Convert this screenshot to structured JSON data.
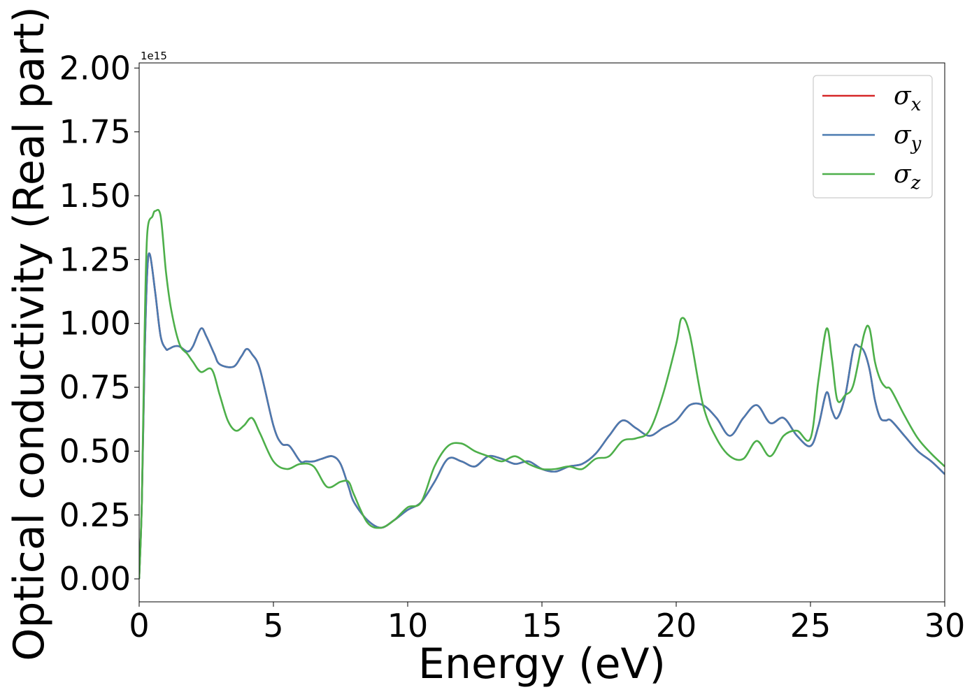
{
  "chart_data": {
    "type": "line",
    "xlabel": "Energy (eV)",
    "ylabel": "Optical conductivity (Real part)",
    "y_offset_label": "1e15",
    "xlim": [
      0,
      30
    ],
    "ylim": [
      -0.09,
      2.02
    ],
    "x_ticks": [
      0,
      5,
      10,
      15,
      20,
      25,
      30
    ],
    "y_ticks": [
      0.0,
      0.25,
      0.5,
      0.75,
      1.0,
      1.25,
      1.5,
      1.75,
      2.0
    ],
    "x_tick_labels": [
      "0",
      "5",
      "10",
      "15",
      "20",
      "25",
      "30"
    ],
    "y_tick_labels": [
      "0.00",
      "0.25",
      "0.50",
      "0.75",
      "1.00",
      "1.25",
      "1.50",
      "1.75",
      "2.00"
    ],
    "grid": false,
    "legend_position": "top-right",
    "series": [
      {
        "name": "σx",
        "label_base": "σ",
        "label_sub": "x",
        "color": "#d62728",
        "x": [
          0,
          0.1,
          0.2,
          0.3,
          0.4,
          0.6,
          0.8,
          1.0,
          1.1,
          1.3,
          1.5,
          1.8,
          2.0,
          2.3,
          2.5,
          2.8,
          3.0,
          3.5,
          3.8,
          4.0,
          4.2,
          4.5,
          5.0,
          5.3,
          5.6,
          6.0,
          6.2,
          6.5,
          6.8,
          7.2,
          7.5,
          7.8,
          8.0,
          8.5,
          9.0,
          9.5,
          10.0,
          10.5,
          11.0,
          11.5,
          12.0,
          12.5,
          13.0,
          13.5,
          14.0,
          14.5,
          15.0,
          15.5,
          16.0,
          16.5,
          17.0,
          17.5,
          18.0,
          18.5,
          19.0,
          19.5,
          20.0,
          20.5,
          21.0,
          21.5,
          22.0,
          22.5,
          23.0,
          23.5,
          24.0,
          24.5,
          25.0,
          25.3,
          25.6,
          25.8,
          26.0,
          26.3,
          26.6,
          26.8,
          27.0,
          27.2,
          27.4,
          27.6,
          27.8,
          28.0,
          28.5,
          29.0,
          29.5,
          30.0
        ],
        "y": [
          0.0,
          0.3,
          0.85,
          1.2,
          1.27,
          1.12,
          0.95,
          0.9,
          0.9,
          0.91,
          0.91,
          0.89,
          0.91,
          0.98,
          0.95,
          0.88,
          0.84,
          0.83,
          0.87,
          0.9,
          0.88,
          0.82,
          0.6,
          0.53,
          0.52,
          0.46,
          0.46,
          0.46,
          0.47,
          0.48,
          0.45,
          0.36,
          0.3,
          0.23,
          0.2,
          0.23,
          0.27,
          0.3,
          0.38,
          0.47,
          0.46,
          0.44,
          0.48,
          0.47,
          0.45,
          0.46,
          0.43,
          0.42,
          0.44,
          0.45,
          0.49,
          0.56,
          0.62,
          0.59,
          0.56,
          0.59,
          0.62,
          0.68,
          0.68,
          0.63,
          0.56,
          0.63,
          0.68,
          0.61,
          0.63,
          0.56,
          0.52,
          0.6,
          0.73,
          0.66,
          0.63,
          0.72,
          0.9,
          0.91,
          0.89,
          0.82,
          0.7,
          0.63,
          0.62,
          0.62,
          0.56,
          0.5,
          0.46,
          0.41
        ]
      },
      {
        "name": "σy",
        "label_base": "σ",
        "label_sub": "y",
        "color": "#4a7ab0",
        "x": [
          0,
          0.1,
          0.2,
          0.3,
          0.4,
          0.6,
          0.8,
          1.0,
          1.1,
          1.3,
          1.5,
          1.8,
          2.0,
          2.3,
          2.5,
          2.8,
          3.0,
          3.5,
          3.8,
          4.0,
          4.2,
          4.5,
          5.0,
          5.3,
          5.6,
          6.0,
          6.2,
          6.5,
          6.8,
          7.2,
          7.5,
          7.8,
          8.0,
          8.5,
          9.0,
          9.5,
          10.0,
          10.5,
          11.0,
          11.5,
          12.0,
          12.5,
          13.0,
          13.5,
          14.0,
          14.5,
          15.0,
          15.5,
          16.0,
          16.5,
          17.0,
          17.5,
          18.0,
          18.5,
          19.0,
          19.5,
          20.0,
          20.5,
          21.0,
          21.5,
          22.0,
          22.5,
          23.0,
          23.5,
          24.0,
          24.5,
          25.0,
          25.3,
          25.6,
          25.8,
          26.0,
          26.3,
          26.6,
          26.8,
          27.0,
          27.2,
          27.4,
          27.6,
          27.8,
          28.0,
          28.5,
          29.0,
          29.5,
          30.0
        ],
        "y": [
          0.0,
          0.3,
          0.85,
          1.2,
          1.27,
          1.12,
          0.95,
          0.9,
          0.9,
          0.91,
          0.91,
          0.89,
          0.91,
          0.98,
          0.95,
          0.88,
          0.84,
          0.83,
          0.87,
          0.9,
          0.88,
          0.82,
          0.6,
          0.53,
          0.52,
          0.46,
          0.46,
          0.46,
          0.47,
          0.48,
          0.45,
          0.36,
          0.3,
          0.23,
          0.2,
          0.23,
          0.27,
          0.3,
          0.38,
          0.47,
          0.46,
          0.44,
          0.48,
          0.47,
          0.45,
          0.46,
          0.43,
          0.42,
          0.44,
          0.45,
          0.49,
          0.56,
          0.62,
          0.59,
          0.56,
          0.59,
          0.62,
          0.68,
          0.68,
          0.63,
          0.56,
          0.63,
          0.68,
          0.61,
          0.63,
          0.56,
          0.52,
          0.6,
          0.73,
          0.66,
          0.63,
          0.72,
          0.9,
          0.91,
          0.89,
          0.82,
          0.7,
          0.63,
          0.62,
          0.62,
          0.56,
          0.5,
          0.46,
          0.41
        ]
      },
      {
        "name": "σz",
        "label_base": "σ",
        "label_sub": "z",
        "color": "#4daf4a",
        "x": [
          0,
          0.1,
          0.2,
          0.3,
          0.5,
          0.6,
          0.8,
          1.0,
          1.2,
          1.5,
          1.8,
          2.0,
          2.3,
          2.7,
          3.0,
          3.3,
          3.6,
          3.9,
          4.2,
          4.5,
          5.0,
          5.5,
          6.0,
          6.5,
          7.0,
          7.5,
          7.8,
          8.0,
          8.5,
          9.0,
          9.5,
          10.0,
          10.5,
          11.0,
          11.5,
          12.0,
          12.5,
          13.0,
          13.5,
          14.0,
          14.5,
          15.0,
          15.5,
          16.0,
          16.5,
          17.0,
          17.5,
          18.0,
          18.5,
          19.0,
          19.5,
          20.0,
          20.2,
          20.5,
          21.0,
          21.5,
          22.0,
          22.5,
          23.0,
          23.5,
          24.0,
          24.5,
          25.0,
          25.3,
          25.6,
          25.8,
          26.0,
          26.3,
          26.6,
          27.0,
          27.2,
          27.4,
          27.6,
          27.8,
          28.0,
          28.5,
          29.0,
          29.5,
          30.0
        ],
        "y": [
          0.0,
          0.3,
          0.95,
          1.35,
          1.42,
          1.44,
          1.42,
          1.2,
          1.05,
          0.92,
          0.88,
          0.85,
          0.81,
          0.82,
          0.72,
          0.62,
          0.58,
          0.6,
          0.63,
          0.57,
          0.46,
          0.43,
          0.45,
          0.44,
          0.36,
          0.38,
          0.38,
          0.33,
          0.22,
          0.2,
          0.23,
          0.28,
          0.3,
          0.44,
          0.52,
          0.53,
          0.5,
          0.48,
          0.46,
          0.48,
          0.45,
          0.43,
          0.43,
          0.44,
          0.43,
          0.47,
          0.48,
          0.54,
          0.55,
          0.58,
          0.72,
          0.92,
          1.02,
          0.96,
          0.68,
          0.55,
          0.48,
          0.47,
          0.54,
          0.48,
          0.56,
          0.58,
          0.55,
          0.78,
          0.98,
          0.86,
          0.7,
          0.72,
          0.76,
          0.96,
          0.98,
          0.85,
          0.78,
          0.75,
          0.74,
          0.64,
          0.55,
          0.49,
          0.44
        ]
      }
    ]
  }
}
